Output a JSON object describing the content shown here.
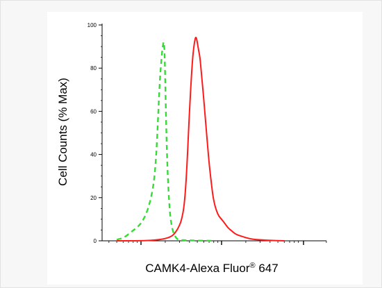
{
  "chart_data": {
    "type": "line",
    "xlabel": "CAMK4-Alexa Fluor",
    "xlabel_superscript": "®",
    "xlabel_suffix": " 647",
    "ylabel": "Cell Counts (% Max)",
    "y_ticks": [
      "0",
      "20",
      "40",
      "60",
      "80",
      "100"
    ],
    "ylim": [
      0,
      105
    ],
    "x_scale": "log",
    "grid": false,
    "legend": "none",
    "series": [
      {
        "style": "dashed",
        "color": "#33dd33",
        "x": [
          0.5,
          0.62,
          0.75,
          0.88,
          1.0,
          1.15,
          1.3,
          1.45,
          1.55,
          1.62,
          1.68,
          1.74,
          1.8,
          1.86,
          1.92,
          1.96,
          2.0,
          2.05,
          2.1,
          2.18,
          2.25,
          2.35,
          2.5,
          2.7,
          2.9,
          3.3,
          4.0,
          5.0,
          8.0
        ],
        "y": [
          0.5,
          1.5,
          4,
          6,
          8,
          12,
          18,
          27,
          40,
          55,
          68,
          78,
          85,
          90,
          93,
          88,
          75,
          55,
          40,
          25,
          16,
          9,
          4,
          1.5,
          0.5,
          0.3,
          0.2,
          0.1,
          0
        ]
      },
      {
        "style": "solid",
        "color": "#ff1a1a",
        "x": [
          0.5,
          1.0,
          1.5,
          2.0,
          2.4,
          2.7,
          3.0,
          3.2,
          3.4,
          3.6,
          3.8,
          4.0,
          4.2,
          4.4,
          4.6,
          4.8,
          5.0,
          5.2,
          5.4,
          5.7,
          6.0,
          6.5,
          7.0,
          7.5,
          8.0,
          9.0,
          10.0,
          11.0,
          12.0,
          13.0,
          15.0,
          18.0,
          22.0,
          28.0,
          40.0,
          60.0
        ],
        "y": [
          0,
          0,
          0.3,
          1,
          2,
          4,
          7,
          10,
          15,
          25,
          42,
          60,
          75,
          86,
          92,
          95,
          92,
          88,
          85,
          75,
          66,
          50,
          36,
          26,
          18,
          12,
          10,
          8,
          6,
          5,
          3,
          2,
          1,
          0.5,
          0.2,
          0
        ]
      }
    ]
  }
}
